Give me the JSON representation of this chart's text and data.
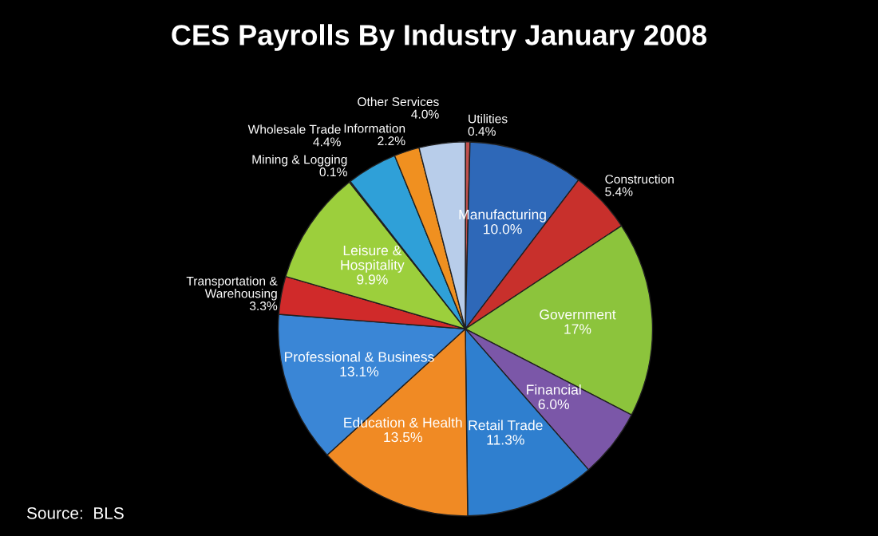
{
  "chart_data": {
    "type": "pie",
    "title": "CES Payrolls By Industry January 2008",
    "categories": [
      "Utilities",
      "Manufacturing",
      "Construction",
      "Government",
      "Financial",
      "Retail Trade",
      "Education & Health",
      "Professional & Business",
      "Transportation &\nWarehousing",
      "Leisure &\nHospitality",
      "Mining & Logging",
      "Wholesale Trade",
      "Information",
      "Other Services"
    ],
    "values": [
      0.4,
      10.0,
      5.4,
      17,
      6.0,
      11.3,
      13.5,
      13.1,
      3.3,
      9.9,
      0.1,
      4.4,
      2.2,
      4.0
    ],
    "value_labels": [
      "0.4%",
      "10.0%",
      "5.4%",
      "17%",
      "6.0%",
      "11.3%",
      "13.5%",
      "13.1%",
      "3.3%",
      "9.9%",
      "0.1%",
      "4.4%",
      "2.2%",
      "4.0%"
    ],
    "colors": [
      "#c0504d",
      "#2e68b8",
      "#c8302c",
      "#8cc43c",
      "#7b57a8",
      "#2f7fcf",
      "#f08a24",
      "#3a86d6",
      "#d02a2a",
      "#9ccf3c",
      "#7b57a8",
      "#2fa0d8",
      "#f09020",
      "#b8cdea"
    ],
    "legend": false,
    "annotations": [
      "Source:  BLS"
    ]
  }
}
